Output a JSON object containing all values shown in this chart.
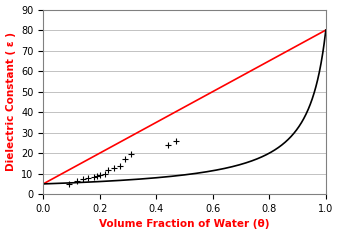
{
  "title": "",
  "xlabel": "Volume Fraction of Water (θ)",
  "ylabel": "Dielectric Constant ( ε )",
  "xlim": [
    0,
    1.0
  ],
  "ylim": [
    0,
    90
  ],
  "yticks": [
    0,
    10,
    20,
    30,
    40,
    50,
    60,
    70,
    80,
    90
  ],
  "xticks": [
    0,
    0.2,
    0.4,
    0.6,
    0.8,
    1.0
  ],
  "eps_soil": 5.0,
  "eps_water": 80.0,
  "upper_color": "#FF0000",
  "lower_color": "#000000",
  "data_points_x": [
    0.09,
    0.12,
    0.14,
    0.16,
    0.18,
    0.19,
    0.2,
    0.22,
    0.23,
    0.25,
    0.27,
    0.29,
    0.31,
    0.44,
    0.47
  ],
  "data_points_y": [
    5.0,
    6.5,
    7.5,
    8.0,
    8.5,
    9.0,
    9.5,
    10.0,
    12.0,
    13.0,
    13.5,
    17.0,
    19.5,
    24.0,
    26.0
  ],
  "background_color": "#FFFFFF",
  "xlabel_color": "#FF0000",
  "ylabel_color": "#FF0000",
  "tick_color": "#000000",
  "line_width": 1.2,
  "marker": "+",
  "marker_size": 4,
  "marker_color": "#000000",
  "grid_color": "#AAAAAA",
  "border_color": "#808080"
}
